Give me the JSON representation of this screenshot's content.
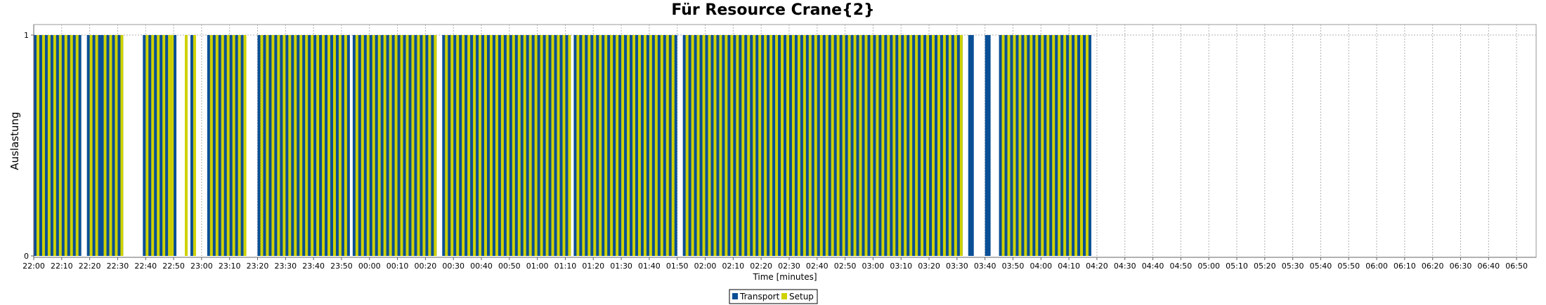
{
  "chart_data": {
    "type": "bar",
    "title": "Für Resource Crane{2}",
    "xlabel": "Time [minutes]",
    "ylabel": "Auslastung",
    "ylim": [
      0,
      1
    ],
    "yticks": [
      "0",
      "1"
    ],
    "xlim": [
      "22:00",
      "06:57"
    ],
    "xticks": [
      "22:00",
      "22:10",
      "22:20",
      "22:30",
      "22:40",
      "22:50",
      "23:00",
      "23:10",
      "23:20",
      "23:30",
      "23:40",
      "23:50",
      "00:00",
      "00:10",
      "00:20",
      "00:30",
      "00:40",
      "00:50",
      "01:00",
      "01:10",
      "01:20",
      "01:30",
      "01:40",
      "01:50",
      "02:00",
      "02:10",
      "02:20",
      "02:30",
      "02:40",
      "02:50",
      "03:00",
      "03:10",
      "03:20",
      "03:30",
      "03:40",
      "03:50",
      "04:00",
      "04:10",
      "04:20",
      "04:30",
      "04:40",
      "04:50",
      "05:00",
      "05:10",
      "05:20",
      "05:30",
      "05:40",
      "05:50",
      "06:00",
      "06:10",
      "06:20",
      "06:30",
      "06:40",
      "06:50"
    ],
    "grid": true,
    "legend_position": "bottom",
    "series": [
      {
        "name": "Transport",
        "color": "#0a4f96",
        "values": 1,
        "intervals": [
          [
            "22:00",
            "22:17"
          ],
          [
            "22:19",
            "22:32"
          ],
          [
            "22:39",
            "22:51"
          ],
          [
            "22:56",
            "22:57"
          ],
          [
            "23:02",
            "23:15"
          ],
          [
            "23:20",
            "23:53"
          ],
          [
            "23:54",
            "00:24"
          ],
          [
            "00:26",
            "01:12"
          ],
          [
            "01:13",
            "01:50"
          ],
          [
            "01:52",
            "03:32"
          ],
          [
            "03:34",
            "03:36"
          ],
          [
            "03:40",
            "03:42"
          ],
          [
            "03:45",
            "04:18"
          ]
        ]
      },
      {
        "name": "Setup",
        "color": "#cfd200",
        "values": 1,
        "intervals": [
          [
            "22:01",
            "22:02"
          ],
          [
            "22:03",
            "22:04"
          ],
          [
            "22:05",
            "22:06"
          ],
          [
            "22:07",
            "22:08"
          ],
          [
            "22:09",
            "22:10"
          ],
          [
            "22:11",
            "22:12"
          ],
          [
            "22:13",
            "22:14"
          ],
          [
            "22:15",
            "22:16"
          ],
          [
            "22:20",
            "22:21"
          ],
          [
            "22:22",
            "22:23"
          ],
          [
            "22:25",
            "22:26"
          ],
          [
            "22:27",
            "22:28"
          ],
          [
            "22:29",
            "22:30"
          ],
          [
            "22:31",
            "22:32"
          ],
          [
            "22:40",
            "22:41"
          ],
          [
            "22:42",
            "22:43"
          ],
          [
            "22:44",
            "22:45"
          ],
          [
            "22:46",
            "22:47"
          ],
          [
            "22:48",
            "22:49"
          ],
          [
            "22:49",
            "22:50"
          ],
          [
            "22:54",
            "22:55"
          ],
          [
            "22:57",
            "22:58"
          ],
          [
            "23:03",
            "23:04"
          ],
          [
            "23:05",
            "23:06"
          ],
          [
            "23:07",
            "23:08"
          ],
          [
            "23:09",
            "23:10"
          ],
          [
            "23:11",
            "23:12"
          ],
          [
            "23:13",
            "23:14"
          ],
          [
            "23:15",
            "23:16"
          ],
          [
            "23:21",
            "23:22"
          ],
          [
            "23:23",
            "23:24"
          ],
          [
            "23:25",
            "23:26"
          ],
          [
            "23:27",
            "23:28"
          ],
          [
            "23:29",
            "23:30"
          ],
          [
            "23:31",
            "23:32"
          ],
          [
            "23:33",
            "23:34"
          ],
          [
            "23:35",
            "23:36"
          ],
          [
            "23:37",
            "23:38"
          ],
          [
            "23:39",
            "23:40"
          ],
          [
            "23:41",
            "23:42"
          ],
          [
            "23:43",
            "23:44"
          ],
          [
            "23:45",
            "23:46"
          ],
          [
            "23:47",
            "23:48"
          ],
          [
            "23:49",
            "23:50"
          ],
          [
            "23:51",
            "23:52"
          ],
          [
            "23:55",
            "23:56"
          ],
          [
            "23:57",
            "23:58"
          ],
          [
            "23:59",
            "00:00"
          ],
          [
            "00:01",
            "00:02"
          ],
          [
            "00:03",
            "00:04"
          ],
          [
            "00:05",
            "00:06"
          ],
          [
            "00:07",
            "00:08"
          ],
          [
            "00:09",
            "00:10"
          ],
          [
            "00:11",
            "00:12"
          ],
          [
            "00:13",
            "00:14"
          ],
          [
            "00:15",
            "00:16"
          ],
          [
            "00:17",
            "00:18"
          ],
          [
            "00:19",
            "00:20"
          ],
          [
            "00:21",
            "00:22"
          ],
          [
            "00:23",
            "00:24"
          ],
          [
            "00:27",
            "00:28"
          ],
          [
            "00:29",
            "00:30"
          ],
          [
            "00:31",
            "00:32"
          ],
          [
            "00:33",
            "00:34"
          ],
          [
            "00:35",
            "00:36"
          ],
          [
            "00:37",
            "00:38"
          ],
          [
            "00:39",
            "00:40"
          ],
          [
            "00:41",
            "00:42"
          ],
          [
            "00:43",
            "00:44"
          ],
          [
            "00:45",
            "00:46"
          ],
          [
            "00:47",
            "00:48"
          ],
          [
            "00:49",
            "00:50"
          ],
          [
            "00:51",
            "00:52"
          ],
          [
            "00:53",
            "00:54"
          ],
          [
            "00:55",
            "00:56"
          ],
          [
            "00:57",
            "00:58"
          ],
          [
            "00:59",
            "01:00"
          ],
          [
            "01:01",
            "01:02"
          ],
          [
            "01:03",
            "01:04"
          ],
          [
            "01:05",
            "01:06"
          ],
          [
            "01:07",
            "01:08"
          ],
          [
            "01:09",
            "01:10"
          ],
          [
            "01:11",
            "01:12"
          ],
          [
            "01:14",
            "01:15"
          ],
          [
            "01:16",
            "01:17"
          ],
          [
            "01:18",
            "01:19"
          ],
          [
            "01:20",
            "01:21"
          ],
          [
            "01:22",
            "01:23"
          ],
          [
            "01:24",
            "01:25"
          ],
          [
            "01:26",
            "01:27"
          ],
          [
            "01:28",
            "01:29"
          ],
          [
            "01:30",
            "01:31"
          ],
          [
            "01:32",
            "01:33"
          ],
          [
            "01:34",
            "01:35"
          ],
          [
            "01:36",
            "01:37"
          ],
          [
            "01:38",
            "01:39"
          ],
          [
            "01:40",
            "01:41"
          ],
          [
            "01:42",
            "01:43"
          ],
          [
            "01:44",
            "01:45"
          ],
          [
            "01:46",
            "01:47"
          ],
          [
            "01:48",
            "01:49"
          ],
          [
            "01:53",
            "01:54"
          ],
          [
            "01:55",
            "01:56"
          ],
          [
            "01:57",
            "01:58"
          ],
          [
            "01:59",
            "02:00"
          ],
          [
            "02:01",
            "02:02"
          ],
          [
            "02:03",
            "02:04"
          ],
          [
            "02:05",
            "02:06"
          ],
          [
            "02:07",
            "02:08"
          ],
          [
            "02:09",
            "02:10"
          ],
          [
            "02:11",
            "02:12"
          ],
          [
            "02:13",
            "02:14"
          ],
          [
            "02:15",
            "02:16"
          ],
          [
            "02:17",
            "02:18"
          ],
          [
            "02:19",
            "02:20"
          ],
          [
            "02:21",
            "02:22"
          ],
          [
            "02:23",
            "02:24"
          ],
          [
            "02:25",
            "02:26"
          ],
          [
            "02:27",
            "02:28"
          ],
          [
            "02:29",
            "02:30"
          ],
          [
            "02:31",
            "02:32"
          ],
          [
            "02:33",
            "02:34"
          ],
          [
            "02:35",
            "02:36"
          ],
          [
            "02:37",
            "02:38"
          ],
          [
            "02:39",
            "02:40"
          ],
          [
            "02:41",
            "02:42"
          ],
          [
            "02:43",
            "02:44"
          ],
          [
            "02:45",
            "02:46"
          ],
          [
            "02:47",
            "02:48"
          ],
          [
            "02:49",
            "02:50"
          ],
          [
            "02:51",
            "02:52"
          ],
          [
            "02:53",
            "02:54"
          ],
          [
            "02:55",
            "02:56"
          ],
          [
            "02:57",
            "02:58"
          ],
          [
            "02:59",
            "03:00"
          ],
          [
            "03:01",
            "03:02"
          ],
          [
            "03:03",
            "03:04"
          ],
          [
            "03:05",
            "03:06"
          ],
          [
            "03:07",
            "03:08"
          ],
          [
            "03:09",
            "03:10"
          ],
          [
            "03:11",
            "03:12"
          ],
          [
            "03:13",
            "03:14"
          ],
          [
            "03:15",
            "03:16"
          ],
          [
            "03:17",
            "03:18"
          ],
          [
            "03:19",
            "03:20"
          ],
          [
            "03:21",
            "03:22"
          ],
          [
            "03:23",
            "03:24"
          ],
          [
            "03:25",
            "03:26"
          ],
          [
            "03:27",
            "03:28"
          ],
          [
            "03:29",
            "03:30"
          ],
          [
            "03:31",
            "03:32"
          ],
          [
            "03:46",
            "03:47"
          ],
          [
            "03:48",
            "03:49"
          ],
          [
            "03:50",
            "03:51"
          ],
          [
            "03:52",
            "03:53"
          ],
          [
            "03:54",
            "03:55"
          ],
          [
            "03:56",
            "03:57"
          ],
          [
            "03:58",
            "03:59"
          ],
          [
            "04:00",
            "04:01"
          ],
          [
            "04:02",
            "04:03"
          ],
          [
            "04:04",
            "04:05"
          ],
          [
            "04:06",
            "04:07"
          ],
          [
            "04:08",
            "04:09"
          ],
          [
            "04:10",
            "04:11"
          ],
          [
            "04:12",
            "04:13"
          ],
          [
            "04:14",
            "04:15"
          ],
          [
            "04:16",
            "04:17"
          ]
        ]
      }
    ]
  }
}
